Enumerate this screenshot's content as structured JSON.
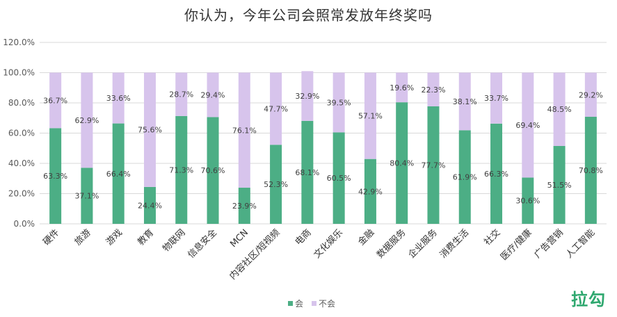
{
  "brand": "拉勾",
  "colors": {
    "yes": "#4cae85",
    "no": "#d7c4ec",
    "grid": "#d9d9d9",
    "brand": "#2fa86f"
  },
  "chart_data": {
    "type": "bar",
    "stacked": true,
    "title": "你认为，今年公司会照常发放年终奖吗",
    "xlabel": "",
    "ylabel": "",
    "ylim": [
      0,
      120
    ],
    "yticks": [
      "0.0%",
      "20.0%",
      "40.0%",
      "60.0%",
      "80.0%",
      "100.0%",
      "120.0%"
    ],
    "grid": true,
    "legend": "bottom-center",
    "categories": [
      "硬件",
      "旅游",
      "游戏",
      "教育",
      "物联网",
      "信息安全",
      "MCN",
      "内容社区/短视频",
      "电商",
      "文化娱乐",
      "金融",
      "数据服务",
      "企业服务",
      "消费生活",
      "社交",
      "医疗/健康",
      "广告营销",
      "人工智能"
    ],
    "series": [
      {
        "name": "会",
        "values": [
          63.3,
          37.1,
          66.4,
          24.4,
          71.3,
          70.6,
          23.9,
          52.3,
          68.1,
          60.5,
          42.9,
          80.4,
          77.7,
          61.9,
          66.3,
          30.6,
          51.5,
          70.8
        ],
        "labels": [
          "63.3%",
          "37.1%",
          "66.4%",
          "24.4%",
          "71.3%",
          "70.6%",
          "23.9%",
          "52.3%",
          "68.1%",
          "60.5%",
          "42.9%",
          "80.4%",
          "77.7%",
          "61.9%",
          "66.3%",
          "30.6%",
          "51.5%",
          "70.8%"
        ]
      },
      {
        "name": "不会",
        "values": [
          36.7,
          62.9,
          33.6,
          75.6,
          28.7,
          29.4,
          76.1,
          47.7,
          32.9,
          39.5,
          57.1,
          19.6,
          22.3,
          38.1,
          33.7,
          69.4,
          48.5,
          29.2
        ],
        "labels": [
          "36.7%",
          "62.9%",
          "33.6%",
          "75.6%",
          "28.7%",
          "29.4%",
          "76.1%",
          "47.7%",
          "32.9%",
          "39.5%",
          "57.1%",
          "19.6%",
          "22.3%",
          "38.1%",
          "33.7%",
          "69.4%",
          "48.5%",
          "29.2%"
        ]
      }
    ]
  }
}
